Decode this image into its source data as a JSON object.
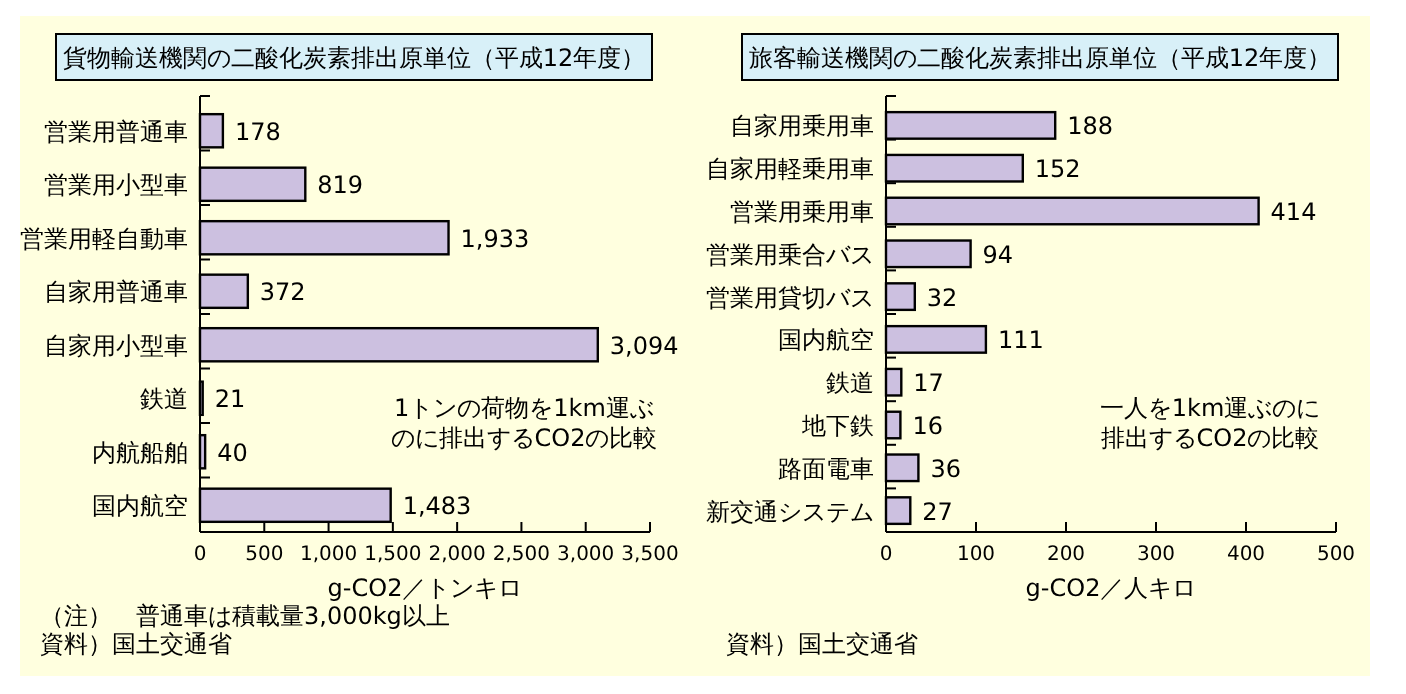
{
  "chart_data": [
    {
      "type": "bar",
      "orientation": "horizontal",
      "title": "貨物輸送機関の二酸化炭素排出原単位（平成12年度）",
      "categories": [
        "営業用普通車",
        "営業用小型車",
        "営業用軽自動車",
        "自家用普通車",
        "自家用小型車",
        "鉄道",
        "内航船舶",
        "国内航空"
      ],
      "values": [
        178,
        819,
        1933,
        372,
        3094,
        21,
        40,
        1483
      ],
      "value_labels": [
        "178",
        "819",
        "1,933",
        "372",
        "3,094",
        "21",
        "40",
        "1,483"
      ],
      "color": "#ccc0e0",
      "xlim": [
        0,
        3500
      ],
      "xticks": [
        0,
        500,
        {
          "value": 1000,
          "label": "1,000"
        },
        {
          "value": 1500,
          "label": "1,500"
        },
        {
          "value": 2000,
          "label": "2,000"
        },
        {
          "value": 2500,
          "label": "2,500"
        },
        {
          "value": 3000,
          "label": "3,000"
        },
        {
          "value": 3500,
          "label": "3,500"
        }
      ],
      "xlabel": "g-CO2／トンキロ",
      "annotations": [
        "1トンの荷物を1km運ぶ",
        "のに排出するCO2の比較",
        "（注）　普通車は積載量3,000kg以上",
        "資料）国土交通省"
      ]
    },
    {
      "type": "bar",
      "orientation": "horizontal",
      "title": "旅客輸送機関の二酸化炭素排出原単位（平成12年度）",
      "categories": [
        "自家用乗用車",
        "自家用軽乗用車",
        "営業用乗用車",
        "営業用乗合バス",
        "営業用貸切バス",
        "国内航空",
        "鉄道",
        "地下鉄",
        "路面電車",
        "新交通システム"
      ],
      "values": [
        188,
        152,
        414,
        94,
        32,
        111,
        17,
        16,
        36,
        27
      ],
      "color": "#ccc0e0",
      "data_labels": true,
      "xlim": [
        0,
        500
      ],
      "xticks": [
        0,
        100,
        200,
        300,
        400,
        500
      ],
      "xlabel": "g-CO2／人キロ",
      "annotations": [
        "一人を1km運ぶのに",
        "排出するCO2の比較",
        "資料）国土交通省"
      ]
    }
  ]
}
